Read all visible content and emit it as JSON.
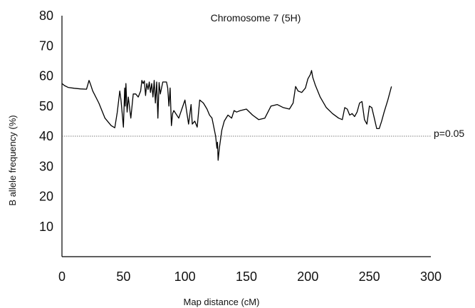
{
  "chart_data": {
    "type": "line",
    "title": "Chromosome 7 (5H)",
    "xlabel": "Map distance (cM)",
    "ylabel": "B allele frequency (%)",
    "xlim": [
      0,
      300
    ],
    "ylim": [
      0,
      80
    ],
    "xticks": [
      0,
      50,
      100,
      150,
      200,
      250,
      300
    ],
    "yticks": [
      10,
      20,
      30,
      40,
      50,
      60,
      70,
      80
    ],
    "grid": false,
    "threshold": {
      "y": 40,
      "label": "p=0.05",
      "style": "dotted"
    },
    "series": [
      {
        "x": [
          0,
          2,
          5,
          10,
          15,
          20,
          22,
          23,
          25,
          30,
          35,
          40,
          43,
          45,
          47,
          48,
          50,
          51,
          51.5,
          52,
          53,
          54,
          56,
          58,
          60,
          62,
          64,
          65,
          66,
          67,
          68,
          69,
          70,
          71,
          72,
          73,
          74,
          75,
          76,
          77,
          78,
          79,
          80,
          82,
          85,
          86,
          87,
          88,
          89,
          90,
          91,
          95,
          100,
          103,
          105,
          106,
          108,
          110,
          112,
          115,
          118,
          120,
          122,
          124,
          125,
          126,
          126.5,
          127,
          128,
          130,
          132,
          135,
          138,
          140,
          142,
          145,
          150,
          155,
          160,
          165,
          170,
          175,
          180,
          185,
          188,
          190,
          192,
          195,
          198,
          200,
          202,
          203,
          204,
          206,
          210,
          215,
          220,
          225,
          228,
          230,
          232,
          234,
          236,
          238,
          240,
          242,
          244,
          246,
          248,
          250,
          252,
          254,
          256,
          258,
          260,
          262,
          265,
          268
        ],
        "y": [
          57.5,
          56.8,
          56.2,
          55.9,
          55.7,
          55.6,
          58.5,
          57.5,
          55,
          51,
          46,
          43.5,
          42.8,
          48,
          55,
          52,
          43,
          56,
          50,
          57.5,
          48,
          53,
          46,
          54,
          54,
          53,
          55,
          58.5,
          57.5,
          58.4,
          53.5,
          57.5,
          55.5,
          58,
          54.5,
          57.5,
          53,
          58.5,
          51,
          58,
          46,
          57.8,
          54,
          58,
          58,
          56,
          50,
          56,
          43.5,
          47.5,
          48.5,
          46,
          52,
          44,
          50.5,
          44,
          45,
          43,
          52,
          51,
          49,
          47,
          46,
          42,
          40,
          36,
          38,
          32,
          36,
          42,
          45,
          47,
          46,
          48.5,
          48,
          48.5,
          49,
          47,
          45.5,
          46,
          50,
          50.5,
          49.5,
          49,
          51,
          56.5,
          55,
          54.5,
          56,
          59,
          60.5,
          61.8,
          59.5,
          57,
          53,
          49.5,
          47.5,
          46,
          45.5,
          49.5,
          49,
          47,
          47.5,
          46.5,
          48,
          51,
          51.5,
          45.5,
          44,
          50,
          49.5,
          46,
          42.5,
          42.5,
          45,
          48,
          52,
          56.5
        ]
      }
    ]
  }
}
